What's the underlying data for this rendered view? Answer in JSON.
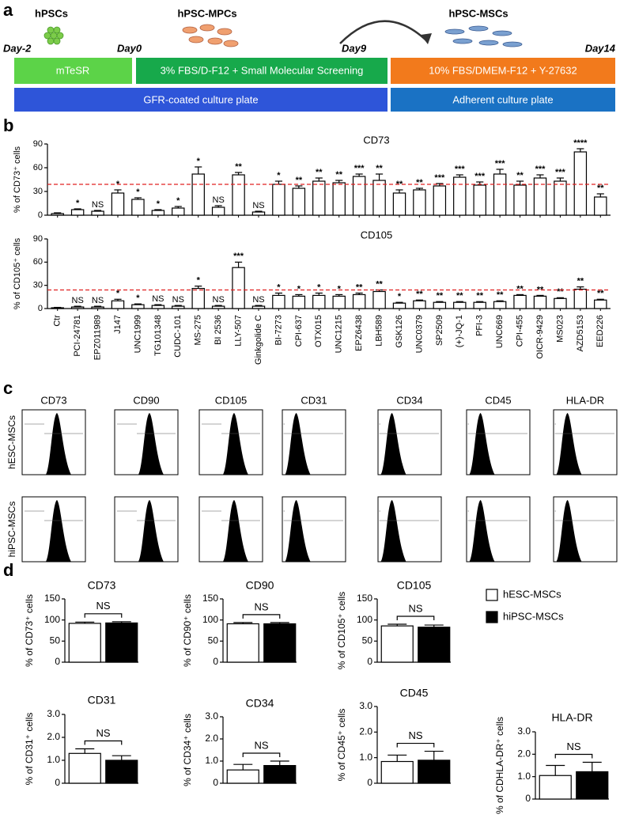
{
  "panels": [
    "a",
    "b",
    "c",
    "d"
  ],
  "protocol": {
    "stages": [
      "hPSCs",
      "hPSC-MPCs",
      "hPSC-MSCs"
    ],
    "days": [
      "Day-2",
      "Day0",
      "Day9",
      "Day14"
    ],
    "media": [
      "mTeSR",
      "3% FBS/D-F12 + Small Molecular Screening",
      "10% FBS/DMEM-F12 + Y-27632"
    ],
    "plates": [
      "GFR-coated culture plate",
      "Adherent culture plate"
    ]
  },
  "flow": {
    "markers": [
      "CD73",
      "CD90",
      "CD105",
      "CD31",
      "CD34",
      "CD45",
      "HLA-DR"
    ],
    "rows": [
      "hESC-MSCs",
      "hiPSC-MSCs"
    ]
  },
  "legend": [
    {
      "name": "hESC-MSCs",
      "color": "#ffffff"
    },
    {
      "name": "hiPSC-MSCs",
      "color": "#000000"
    }
  ],
  "chart_data": [
    {
      "type": "bar",
      "title": "CD73",
      "ylabel": "% of CD73⁺ cells",
      "color": "#ffffff",
      "values": [
        2,
        7,
        5,
        28,
        20,
        6,
        9,
        52,
        10,
        51,
        4,
        39,
        34,
        43,
        41,
        49,
        44,
        28,
        32,
        37,
        48,
        38,
        52,
        38,
        47,
        43,
        80,
        23
      ],
      "errors": [
        1,
        1,
        1,
        4,
        2,
        1,
        2,
        9,
        2,
        3,
        1,
        4,
        3,
        4,
        3,
        3,
        8,
        4,
        2,
        3,
        3,
        4,
        6,
        5,
        4,
        4,
        4,
        4
      ],
      "annotations": [
        null,
        "*",
        "NS",
        "*",
        "*",
        "*",
        "*",
        "*",
        "NS",
        "**",
        "NS",
        "*",
        "**",
        "**",
        "**",
        "***",
        "**",
        "**",
        "**",
        "***",
        "***",
        "***",
        "***",
        "**",
        "***",
        "***",
        "****",
        "**"
      ],
      "ylim": [
        0,
        90
      ],
      "yticks": [
        0,
        30,
        60,
        90
      ],
      "reference_line": 39,
      "reference_color": "#e02020"
    },
    {
      "type": "bar",
      "title": "CD105",
      "ylabel": "% of CD105⁺ cells",
      "color": "#ffffff",
      "categories": [
        "Ctr",
        "PCI-24781",
        "EPZ011989",
        "J147",
        "UNC1999",
        "TG101348",
        "CUDC-101",
        "MS-275",
        "BI 2536",
        "LLY-507",
        "Ginkgolide C",
        "BI-7273",
        "CPI-637",
        "OTX015",
        "UNC1215",
        "EPZ6438",
        "LBH589",
        "GSK126",
        "UNC0379",
        "SP2509",
        "(+)-JQ-1",
        "PFI-3",
        "UNC669",
        "CPI-455",
        "OICR-9429",
        "MS023",
        "AZD5153",
        "EED226"
      ],
      "values": [
        1,
        2,
        2,
        10,
        5,
        4,
        3,
        26,
        3,
        53,
        3,
        17,
        16,
        17,
        16,
        18,
        22,
        7,
        10,
        8,
        8,
        8,
        9,
        17,
        16,
        13,
        25,
        11
      ],
      "errors": [
        0.5,
        1,
        1,
        2,
        1,
        1,
        1,
        3,
        1,
        7,
        1,
        3,
        2,
        3,
        2,
        2,
        2,
        1,
        1,
        1,
        1,
        1,
        1,
        1,
        1,
        1,
        3,
        1
      ],
      "annotations": [
        null,
        "NS",
        "NS",
        "*",
        "*",
        "NS",
        "NS",
        "*",
        "NS",
        "***",
        "NS",
        "*",
        "*",
        "*",
        "*",
        "**",
        "**",
        "*",
        "**",
        "**",
        "**",
        "**",
        "**",
        "**",
        "**",
        "**",
        "**",
        "**"
      ],
      "ylim": [
        0,
        90
      ],
      "yticks": [
        0,
        30,
        60,
        90
      ],
      "reference_line": 24,
      "reference_color": "#e02020"
    },
    {
      "type": "bar",
      "title": "CD73",
      "ylabel": "% of CD73⁺ cells",
      "values": [
        92,
        93
      ],
      "errors": [
        3,
        3
      ],
      "annotation": "NS",
      "ylim": [
        0,
        150
      ],
      "yticks": [
        0,
        50,
        100,
        150
      ]
    },
    {
      "type": "bar",
      "title": "CD90",
      "ylabel": "% of CD90⁺ cells",
      "values": [
        91,
        91
      ],
      "errors": [
        3,
        3
      ],
      "annotation": "NS",
      "ylim": [
        0,
        150
      ],
      "yticks": [
        0,
        50,
        100,
        150
      ]
    },
    {
      "type": "bar",
      "title": "CD105",
      "ylabel": "% of CD105⁺ cells",
      "values": [
        86,
        83
      ],
      "errors": [
        4,
        5
      ],
      "annotation": "NS",
      "ylim": [
        0,
        150
      ],
      "yticks": [
        0,
        50,
        100,
        150
      ]
    },
    {
      "type": "bar",
      "title": "CD31",
      "ylabel": "% of CD31⁺ cells",
      "values": [
        1.3,
        1.0
      ],
      "errors": [
        0.2,
        0.2
      ],
      "annotation": "NS",
      "ylim": [
        0,
        3
      ],
      "yticks": [
        0,
        {
          "value": 1,
          "label": "1.0"
        },
        {
          "value": 2,
          "label": "2.0"
        },
        {
          "value": 3,
          "label": "3.0"
        }
      ]
    },
    {
      "type": "bar",
      "title": "CD34",
      "ylabel": "% of CD34⁺ cells",
      "values": [
        0.6,
        0.8
      ],
      "errors": [
        0.25,
        0.2
      ],
      "annotation": "NS",
      "ylim": [
        0,
        3
      ],
      "yticks": [
        0,
        {
          "value": 1,
          "label": "1.0"
        },
        {
          "value": 2,
          "label": "2.0"
        },
        {
          "value": 3,
          "label": "3.0"
        }
      ]
    },
    {
      "type": "bar",
      "title": "CD45",
      "ylabel": "% of CD45⁺ cells",
      "values": [
        0.85,
        0.9
      ],
      "errors": [
        0.25,
        0.35
      ],
      "annotation": "NS",
      "ylim": [
        0,
        3
      ],
      "yticks": [
        0,
        {
          "value": 1,
          "label": "1.0"
        },
        {
          "value": 2,
          "label": "2.0"
        },
        {
          "value": 3,
          "label": "3.0"
        }
      ]
    },
    {
      "type": "bar",
      "title": "HLA-DR",
      "ylabel": "% of CDHLA-DR⁺ cells",
      "values": [
        1.05,
        1.22
      ],
      "errors": [
        0.45,
        0.42
      ],
      "annotation": "NS",
      "ylim": [
        0,
        3
      ],
      "yticks": [
        0,
        {
          "value": 1,
          "label": "1.0"
        },
        {
          "value": 2,
          "label": "2.0"
        },
        {
          "value": 3,
          "label": "3.0"
        }
      ]
    }
  ]
}
